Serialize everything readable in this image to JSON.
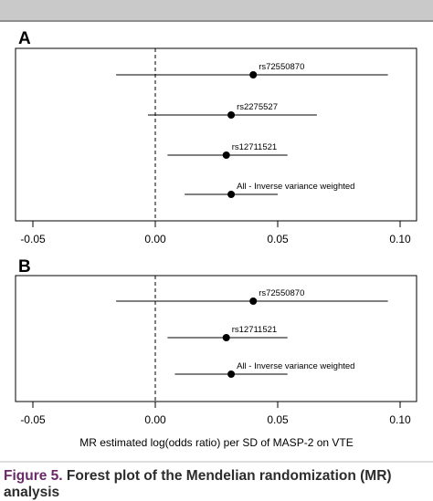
{
  "chart_data": [
    {
      "type": "forest",
      "panel_label": "A",
      "xlim": [
        -0.06,
        0.105
      ],
      "xticks": [
        -0.05,
        0.0,
        0.05,
        0.1
      ],
      "tick_labels": [
        "-0.05",
        "0.00",
        "0.05",
        "0.10"
      ],
      "reference_line": 0,
      "xlabel": "",
      "rows": [
        {
          "label": "rs72550870",
          "estimate": 0.04,
          "lower": -0.016,
          "upper": 0.095
        },
        {
          "label": "rs2275527",
          "estimate": 0.031,
          "lower": -0.003,
          "upper": 0.066
        },
        {
          "label": "rs12711521",
          "estimate": 0.029,
          "lower": 0.005,
          "upper": 0.054
        },
        {
          "label": "All - Inverse variance weighted",
          "estimate": 0.031,
          "lower": 0.012,
          "upper": 0.05
        }
      ]
    },
    {
      "type": "forest",
      "panel_label": "B",
      "xlim": [
        -0.06,
        0.105
      ],
      "xticks": [
        -0.05,
        0.0,
        0.05,
        0.1
      ],
      "tick_labels": [
        "-0.05",
        "0.00",
        "0.05",
        "0.10"
      ],
      "reference_line": 0,
      "xlabel": "MR estimated log(odds ratio) per SD of MASP-2 on VTE",
      "rows": [
        {
          "label": "rs72550870",
          "estimate": 0.04,
          "lower": -0.016,
          "upper": 0.095
        },
        {
          "label": "rs12711521",
          "estimate": 0.029,
          "lower": 0.005,
          "upper": 0.054
        },
        {
          "label": "All - Inverse variance weighted",
          "estimate": 0.031,
          "lower": 0.008,
          "upper": 0.054
        }
      ]
    }
  ],
  "caption": {
    "prefix": "Figure 5.",
    "text": " Forest plot of the Mendelian randomization (MR)",
    "line2": "analysis"
  },
  "colors": {
    "caption_prefix": "#6a2a6a",
    "caption_text": "#2c2c2c",
    "plot_ink": "#000000",
    "top_bar": "#c9c9c9"
  }
}
